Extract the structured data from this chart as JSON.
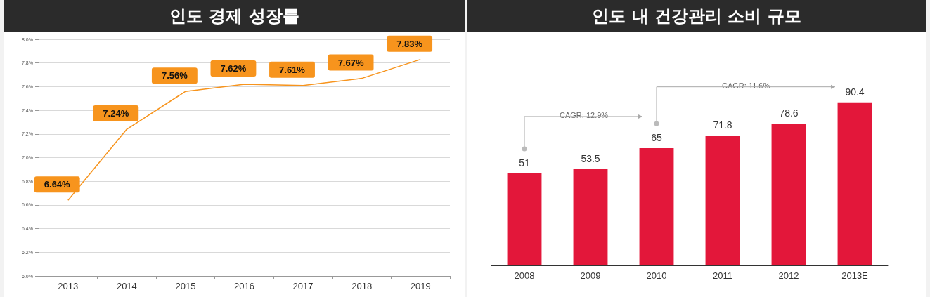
{
  "chart_data": [
    {
      "type": "line",
      "title": "인도 경제 성장률",
      "categories": [
        "2013",
        "2014",
        "2015",
        "2016",
        "2017",
        "2018",
        "2019"
      ],
      "series": [
        {
          "color": "#f7941d",
          "values": [
            6.64,
            7.24,
            7.56,
            7.62,
            7.61,
            7.67,
            7.83
          ],
          "value_labels": [
            "6.64%",
            "7.24%",
            "7.56%",
            "7.62%",
            "7.61%",
            "7.67%",
            "7.83%"
          ]
        }
      ],
      "ylim": [
        6.0,
        8.0
      ],
      "yticks": [
        {
          "value": 6.0,
          "label": "6.0%"
        },
        {
          "value": 6.2,
          "label": "6.2%"
        },
        {
          "value": 6.4,
          "label": "6.4%"
        },
        {
          "value": 6.6,
          "label": "6.6%"
        },
        {
          "value": 6.8,
          "label": "6.8%"
        },
        {
          "value": 7.0,
          "label": "7.0%"
        },
        {
          "value": 7.2,
          "label": "7.2%"
        },
        {
          "value": 7.4,
          "label": "7.4%"
        },
        {
          "value": 7.6,
          "label": "7.6%"
        },
        {
          "value": 7.8,
          "label": "7.8%"
        },
        {
          "value": 8.0,
          "label": "8.0%"
        }
      ],
      "grid": "y",
      "marker": "none",
      "line_style": "solid"
    },
    {
      "type": "bar",
      "title": "인도 내 건강관리 소비 규모",
      "categories": [
        "2008",
        "2009",
        "2010",
        "2011",
        "2012",
        "2013E"
      ],
      "values": [
        51,
        53.5,
        65,
        71.8,
        78.6,
        90.4
      ],
      "color": "#e3173a",
      "data_labels": true,
      "grid": false,
      "annotations": [
        "CAGR: 12.9%",
        "CAGR: 11.6%"
      ]
    }
  ]
}
